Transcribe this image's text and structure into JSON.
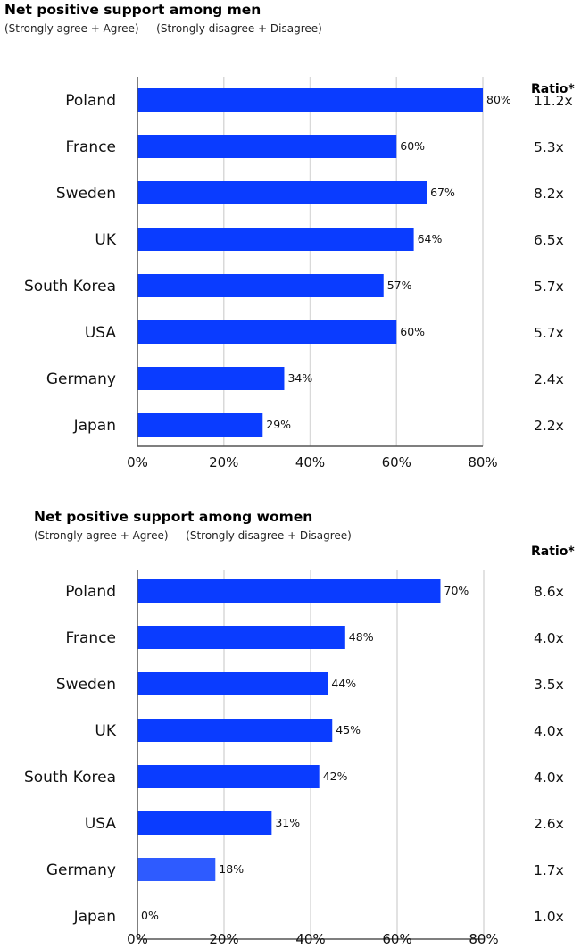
{
  "chart_data": [
    {
      "type": "bar",
      "orientation": "horizontal",
      "title": "Net positive support among men",
      "subtitle": "(Strongly agree + Agree) — (Strongly disagree + Disagree)",
      "ratio_header": "Ratio*",
      "categories": [
        "Poland",
        "France",
        "Sweden",
        "UK",
        "South Korea",
        "USA",
        "Germany",
        "Japan"
      ],
      "values": [
        80,
        60,
        67,
        64,
        57,
        60,
        34,
        29
      ],
      "value_labels": [
        "80%",
        "60%",
        "67%",
        "64%",
        "57%",
        "60%",
        "34%",
        "29%"
      ],
      "ratios": [
        "11.2x",
        "5.3x",
        "8.2x",
        "6.5x",
        "5.7x",
        "5.7x",
        "2.4x",
        "2.2x"
      ],
      "xlim": [
        0,
        80
      ],
      "xticks": [
        0,
        20,
        40,
        60,
        80
      ],
      "xtick_labels": [
        "0%",
        "20%",
        "40%",
        "60%",
        "80%"
      ],
      "grid": true,
      "bar_colors": [
        "#0a3cff",
        "#0a3cff",
        "#0a3cff",
        "#0a3cff",
        "#0a3cff",
        "#0a3cff",
        "#0a3cff",
        "#0a3cff"
      ]
    },
    {
      "type": "bar",
      "orientation": "horizontal",
      "title": "Net positive support among women",
      "subtitle": "(Strongly agree + Agree) — (Strongly disagree + Disagree)",
      "ratio_header": "Ratio*",
      "categories": [
        "Poland",
        "France",
        "Sweden",
        "UK",
        "South Korea",
        "USA",
        "Germany",
        "Japan"
      ],
      "values": [
        70,
        48,
        44,
        45,
        42,
        31,
        18,
        0
      ],
      "value_labels": [
        "70%",
        "48%",
        "44%",
        "45%",
        "42%",
        "31%",
        "18%",
        "0%"
      ],
      "ratios": [
        "8.6x",
        "4.0x",
        "3.5x",
        "4.0x",
        "4.0x",
        "2.6x",
        "1.7x",
        "1.0x"
      ],
      "xlim": [
        0,
        80
      ],
      "xticks": [
        0,
        20,
        40,
        60,
        80
      ],
      "xtick_labels": [
        "0%",
        "20%",
        "40%",
        "60%",
        "80%"
      ],
      "grid": true,
      "bar_colors": [
        "#0a3cff",
        "#0a3cff",
        "#0a3cff",
        "#0a3cff",
        "#0a3cff",
        "#0a3cff",
        "#2e5bff",
        "#0a3cff"
      ]
    }
  ],
  "colors": {
    "grid": "#d9d9d9",
    "axis": "#555555"
  }
}
